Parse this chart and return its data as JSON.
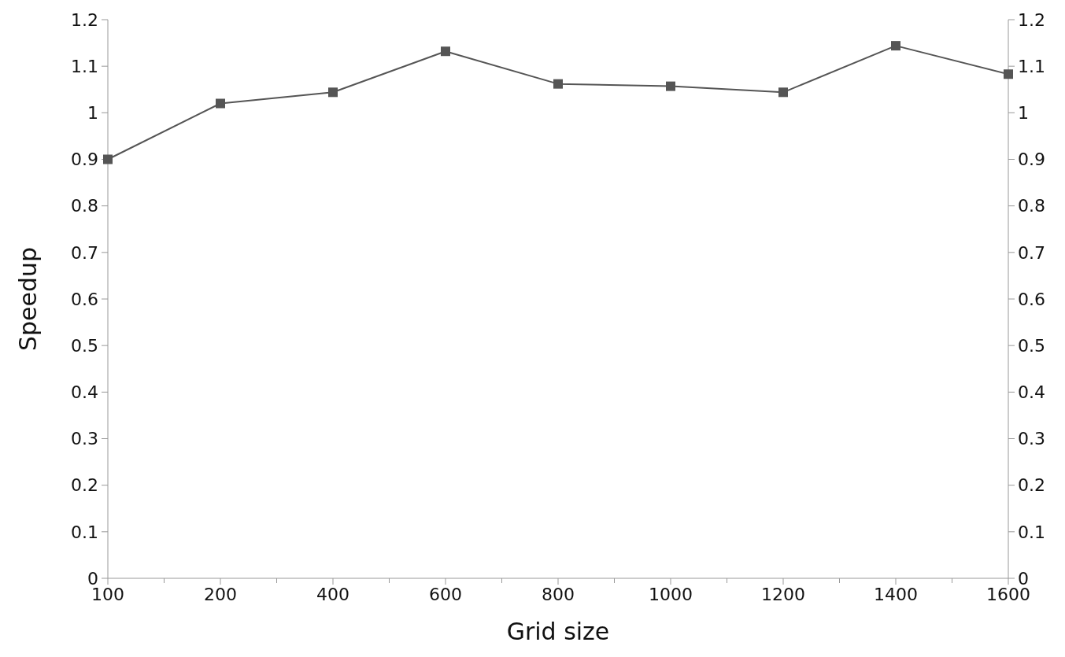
{
  "chart_data": {
    "type": "line",
    "xlabel": "Grid size",
    "ylabel": "Speedup",
    "categories": [
      "100",
      "200",
      "400",
      "600",
      "800",
      "1000",
      "1200",
      "1400",
      "1600"
    ],
    "series": [
      {
        "color": "#555555",
        "values": [
          0.9,
          1.02,
          1.044,
          1.132,
          1.062,
          1.057,
          1.044,
          1.144,
          1.083
        ]
      }
    ],
    "ylim": [
      0,
      1.2
    ],
    "yticks": [
      0,
      0.1,
      0.2,
      0.3,
      0.4,
      0.5,
      0.6,
      0.7,
      0.8,
      0.9,
      1,
      1.1,
      1.2
    ],
    "y2lim": [
      0,
      1.2
    ],
    "y2ticks": [
      0,
      0.1,
      0.2,
      0.3,
      0.4,
      0.5,
      0.6,
      0.7,
      0.8,
      0.9,
      1,
      1.1,
      1.2
    ],
    "marker": "square",
    "line_style": "solid"
  }
}
